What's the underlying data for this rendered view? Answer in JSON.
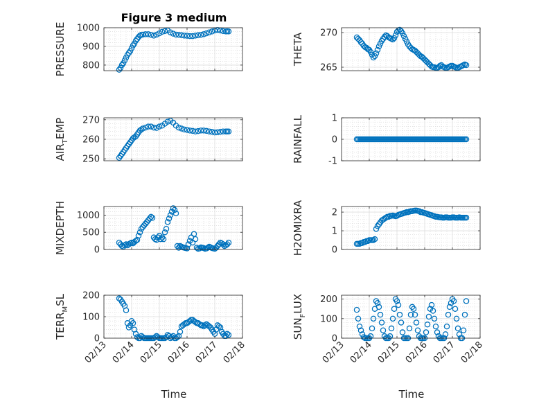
{
  "figure": {
    "title": "Figure 3 medium",
    "xlabel": "Time",
    "marker_color": "#0072bd"
  },
  "chart_data": [
    {
      "type": "scatter",
      "ylabel_parts": [
        "PRESSURE"
      ],
      "ylim": [
        770,
        1000
      ],
      "yticks": [
        800,
        900,
        1000
      ],
      "xticks": [
        "02/13",
        "02/14",
        "02/15",
        "02/16",
        "02/17",
        "02/18"
      ],
      "x": [
        13.55,
        13.6,
        13.65,
        13.7,
        13.75,
        13.8,
        13.85,
        13.9,
        13.95,
        14.0,
        14.05,
        14.1,
        14.15,
        14.2,
        14.25,
        14.3,
        14.35,
        14.4,
        14.5,
        14.6,
        14.7,
        14.8,
        14.9,
        15.0,
        15.1,
        15.2,
        15.3,
        15.4,
        15.5,
        15.6,
        15.7,
        15.8,
        15.9,
        16.0,
        16.1,
        16.2,
        16.3,
        16.4,
        16.5,
        16.6,
        16.7,
        16.8,
        16.9,
        17.0,
        17.1,
        17.2,
        17.3,
        17.4,
        17.45,
        17.5
      ],
      "y": [
        775,
        785,
        800,
        810,
        825,
        840,
        855,
        865,
        875,
        890,
        905,
        915,
        930,
        940,
        950,
        958,
        962,
        963,
        965,
        965,
        962,
        958,
        963,
        970,
        978,
        982,
        985,
        975,
        968,
        963,
        962,
        960,
        958,
        957,
        955,
        955,
        958,
        960,
        962,
        965,
        970,
        975,
        980,
        985,
        988,
        985,
        982,
        980,
        981,
        980
      ]
    },
    {
      "type": "scatter",
      "ylabel_parts": [
        "THETA"
      ],
      "ylim": [
        264.5,
        270.7
      ],
      "yticks": [
        265,
        270
      ],
      "xticks": [
        "02/13",
        "02/14",
        "02/15",
        "02/16",
        "02/17",
        "02/18"
      ],
      "x": [
        13.55,
        13.6,
        13.65,
        13.7,
        13.75,
        13.8,
        13.85,
        13.9,
        13.95,
        14.0,
        14.05,
        14.1,
        14.15,
        14.2,
        14.25,
        14.3,
        14.35,
        14.4,
        14.45,
        14.5,
        14.55,
        14.6,
        14.65,
        14.7,
        14.75,
        14.8,
        14.85,
        14.9,
        14.95,
        15.0,
        15.05,
        15.1,
        15.15,
        15.2,
        15.25,
        15.3,
        15.35,
        15.4,
        15.45,
        15.5,
        15.55,
        15.6,
        15.65,
        15.7,
        15.75,
        15.8,
        15.85,
        15.9,
        15.95,
        16.0,
        16.05,
        16.1,
        16.15,
        16.2,
        16.25,
        16.3,
        16.35,
        16.4,
        16.45,
        16.5,
        16.55,
        16.6,
        16.65,
        16.7,
        16.75,
        16.8,
        16.85,
        16.9,
        16.95,
        17.0,
        17.05,
        17.1,
        17.15,
        17.2,
        17.25,
        17.3,
        17.35,
        17.4,
        17.45,
        17.5
      ],
      "y": [
        269.3,
        269.1,
        268.9,
        268.6,
        268.4,
        268.1,
        267.9,
        267.8,
        267.6,
        267.5,
        267.2,
        266.8,
        266.4,
        266.6,
        267.0,
        267.5,
        268.0,
        268.4,
        268.8,
        269.1,
        269.4,
        269.6,
        269.5,
        269.3,
        269.2,
        269.1,
        269.0,
        269.2,
        269.6,
        270.1,
        270.3,
        270.4,
        270.2,
        269.9,
        269.5,
        269.1,
        268.7,
        268.3,
        268.0,
        267.8,
        267.6,
        267.5,
        267.4,
        267.2,
        267.0,
        266.8,
        266.6,
        266.5,
        266.3,
        266.1,
        265.9,
        265.7,
        265.5,
        265.3,
        265.1,
        265.0,
        265.0,
        264.9,
        264.9,
        265.0,
        265.2,
        265.3,
        265.1,
        265.0,
        264.9,
        264.9,
        265.0,
        265.1,
        265.2,
        265.2,
        265.1,
        265.0,
        264.9,
        264.9,
        265.0,
        265.1,
        265.2,
        265.3,
        265.4,
        265.3
      ]
    },
    {
      "type": "scatter",
      "ylabel_parts": [
        "AIR",
        "T",
        "EMP"
      ],
      "ylim": [
        249,
        271
      ],
      "yticks": [
        250,
        260,
        270
      ],
      "xticks": [
        "02/13",
        "02/14",
        "02/15",
        "02/16",
        "02/17",
        "02/18"
      ],
      "x": [
        13.55,
        13.6,
        13.65,
        13.7,
        13.75,
        13.8,
        13.85,
        13.9,
        13.95,
        14.0,
        14.05,
        14.1,
        14.15,
        14.2,
        14.25,
        14.3,
        14.35,
        14.4,
        14.5,
        14.6,
        14.7,
        14.8,
        14.9,
        15.0,
        15.1,
        15.2,
        15.3,
        15.4,
        15.5,
        15.6,
        15.7,
        15.8,
        15.9,
        16.0,
        16.1,
        16.2,
        16.3,
        16.4,
        16.5,
        16.6,
        16.7,
        16.8,
        16.9,
        17.0,
        17.1,
        17.2,
        17.3,
        17.4,
        17.45,
        17.5
      ],
      "y": [
        250.5,
        251.5,
        252.5,
        253.5,
        254.5,
        255.5,
        256.5,
        257.5,
        258.5,
        259.5,
        260.5,
        261,
        261.5,
        262.5,
        263.5,
        264.5,
        265,
        265.5,
        266,
        266.5,
        266.5,
        266,
        265.8,
        266.5,
        267,
        268,
        269,
        269.5,
        268.5,
        267,
        266,
        265.5,
        265,
        264.8,
        264.5,
        264.3,
        264,
        264.2,
        264.5,
        264.5,
        264.3,
        264,
        263.8,
        263.5,
        263.6,
        263.8,
        264,
        264,
        264,
        264
      ]
    },
    {
      "type": "scatter",
      "ylabel_parts": [
        "RAINFALL"
      ],
      "ylim": [
        -1,
        1
      ],
      "yticks": [
        -1,
        0,
        1
      ],
      "xticks": [
        "02/13",
        "02/14",
        "02/15",
        "02/16",
        "02/17",
        "02/18"
      ],
      "x": [
        13.55,
        13.6,
        13.65,
        13.7,
        13.75,
        13.8,
        13.85,
        13.9,
        13.95,
        14.0,
        14.05,
        14.1,
        14.15,
        14.2,
        14.25,
        14.3,
        14.35,
        14.4,
        14.45,
        14.5,
        14.55,
        14.6,
        14.65,
        14.7,
        14.75,
        14.8,
        14.85,
        14.9,
        14.95,
        15.0,
        15.05,
        15.1,
        15.15,
        15.2,
        15.25,
        15.3,
        15.35,
        15.4,
        15.45,
        15.5,
        15.55,
        15.6,
        15.65,
        15.7,
        15.75,
        15.8,
        15.85,
        15.9,
        15.95,
        16.0,
        16.05,
        16.1,
        16.15,
        16.2,
        16.25,
        16.3,
        16.35,
        16.4,
        16.45,
        16.5,
        16.55,
        16.6,
        16.65,
        16.7,
        16.75,
        16.8,
        16.85,
        16.9,
        16.95,
        17.0,
        17.05,
        17.1,
        17.15,
        17.2,
        17.25,
        17.3,
        17.35,
        17.4,
        17.45,
        17.5
      ],
      "y": [
        0,
        0,
        0,
        0,
        0,
        0,
        0,
        0,
        0,
        0,
        0,
        0,
        0,
        0,
        0,
        0,
        0,
        0,
        0,
        0,
        0,
        0,
        0,
        0,
        0,
        0,
        0,
        0,
        0,
        0,
        0,
        0,
        0,
        0,
        0,
        0,
        0,
        0,
        0,
        0,
        0,
        0,
        0,
        0,
        0,
        0,
        0,
        0,
        0,
        0,
        0,
        0,
        0,
        0,
        0,
        0,
        0,
        0,
        0,
        0,
        0,
        0,
        0,
        0,
        0,
        0,
        0,
        0,
        0,
        0,
        0,
        0,
        0,
        0,
        0,
        0,
        0,
        0,
        0,
        0
      ]
    },
    {
      "type": "scatter",
      "ylabel_parts": [
        "MIXDEPTH"
      ],
      "ylim": [
        0,
        1250
      ],
      "yticks": [
        0,
        500,
        1000
      ],
      "xticks": [
        "02/13",
        "02/14",
        "02/15",
        "02/16",
        "02/17",
        "02/18"
      ],
      "x": [
        13.55,
        13.6,
        13.65,
        13.7,
        13.75,
        13.8,
        13.85,
        13.9,
        13.95,
        14.0,
        14.05,
        14.1,
        14.15,
        14.2,
        14.25,
        14.3,
        14.35,
        14.4,
        14.45,
        14.5,
        14.55,
        14.6,
        14.65,
        14.7,
        14.75,
        14.8,
        14.85,
        14.9,
        14.95,
        15.0,
        15.05,
        15.1,
        15.15,
        15.2,
        15.25,
        15.3,
        15.35,
        15.4,
        15.45,
        15.5,
        15.55,
        15.6,
        15.65,
        15.7,
        15.75,
        15.8,
        15.85,
        15.9,
        15.95,
        16.0,
        16.05,
        16.1,
        16.15,
        16.2,
        16.25,
        16.3,
        16.35,
        16.4,
        16.45,
        16.5,
        16.55,
        16.6,
        16.65,
        16.7,
        16.75,
        16.8,
        16.85,
        16.9,
        16.95,
        17.0,
        17.05,
        17.1,
        17.15,
        17.2,
        17.25,
        17.3,
        17.35,
        17.4,
        17.45,
        17.5
      ],
      "y": [
        200,
        150,
        100,
        80,
        120,
        150,
        120,
        150,
        180,
        200,
        180,
        220,
        250,
        280,
        400,
        500,
        600,
        650,
        700,
        750,
        800,
        850,
        900,
        950,
        920,
        350,
        300,
        280,
        350,
        400,
        300,
        350,
        300,
        500,
        600,
        800,
        900,
        1000,
        1100,
        1200,
        1150,
        1050,
        100,
        50,
        100,
        80,
        60,
        50,
        40,
        30,
        150,
        250,
        350,
        200,
        450,
        300,
        50,
        20,
        30,
        60,
        50,
        40,
        20,
        30,
        50,
        80,
        60,
        40,
        30,
        20,
        50,
        100,
        150,
        200,
        180,
        150,
        100,
        120,
        150,
        200
      ]
    },
    {
      "type": "scatter",
      "ylabel_parts": [
        "H2OMIXRA"
      ],
      "ylim": [
        0,
        2.3
      ],
      "yticks": [
        0,
        1,
        2
      ],
      "xticks": [
        "02/13",
        "02/14",
        "02/15",
        "02/16",
        "02/17",
        "02/18"
      ],
      "x": [
        13.55,
        13.6,
        13.65,
        13.7,
        13.75,
        13.8,
        13.85,
        13.9,
        13.95,
        14.0,
        14.05,
        14.1,
        14.15,
        14.2,
        14.25,
        14.3,
        14.35,
        14.4,
        14.45,
        14.5,
        14.55,
        14.6,
        14.65,
        14.7,
        14.75,
        14.8,
        14.85,
        14.9,
        14.95,
        15.0,
        15.05,
        15.1,
        15.15,
        15.2,
        15.25,
        15.3,
        15.35,
        15.4,
        15.45,
        15.5,
        15.55,
        15.6,
        15.65,
        15.7,
        15.75,
        15.8,
        15.85,
        15.9,
        15.95,
        16.0,
        16.05,
        16.1,
        16.15,
        16.2,
        16.25,
        16.3,
        16.35,
        16.4,
        16.45,
        16.5,
        16.55,
        16.6,
        16.65,
        16.7,
        16.75,
        16.8,
        16.85,
        16.9,
        16.95,
        17.0,
        17.05,
        17.1,
        17.15,
        17.2,
        17.25,
        17.3,
        17.35,
        17.4,
        17.45,
        17.5
      ],
      "y": [
        0.3,
        0.3,
        0.3,
        0.35,
        0.35,
        0.4,
        0.4,
        0.45,
        0.45,
        0.5,
        0.5,
        0.5,
        0.5,
        0.55,
        1.1,
        1.25,
        1.35,
        1.45,
        1.55,
        1.6,
        1.65,
        1.7,
        1.75,
        1.75,
        1.8,
        1.8,
        1.82,
        1.8,
        1.78,
        1.8,
        1.85,
        1.88,
        1.9,
        1.92,
        1.95,
        1.97,
        2.0,
        2.0,
        2.02,
        2.05,
        2.05,
        2.07,
        2.08,
        2.08,
        2.07,
        2.05,
        2.0,
        2.0,
        1.97,
        1.95,
        1.93,
        1.9,
        1.88,
        1.85,
        1.83,
        1.8,
        1.78,
        1.75,
        1.75,
        1.73,
        1.72,
        1.72,
        1.7,
        1.7,
        1.72,
        1.72,
        1.7,
        1.7,
        1.7,
        1.72,
        1.72,
        1.7,
        1.7,
        1.7,
        1.72,
        1.7,
        1.7,
        1.7,
        1.7,
        1.7
      ]
    },
    {
      "type": "scatter",
      "ylabel_parts": [
        "TERR",
        "M",
        "SL"
      ],
      "ylim": [
        0,
        200
      ],
      "yticks": [
        0,
        100,
        200
      ],
      "xticks": [
        "02/13",
        "02/14",
        "02/15",
        "02/16",
        "02/17",
        "02/18"
      ],
      "x": [
        13.55,
        13.6,
        13.65,
        13.7,
        13.75,
        13.8,
        13.85,
        13.9,
        13.95,
        14.0,
        14.05,
        14.1,
        14.15,
        14.2,
        14.25,
        14.3,
        14.35,
        14.4,
        14.45,
        14.5,
        14.55,
        14.6,
        14.65,
        14.7,
        14.75,
        14.8,
        14.85,
        14.9,
        14.95,
        15.0,
        15.05,
        15.1,
        15.15,
        15.2,
        15.25,
        15.3,
        15.35,
        15.4,
        15.45,
        15.5,
        15.55,
        15.6,
        15.65,
        15.7,
        15.75,
        15.8,
        15.85,
        15.9,
        15.95,
        16.0,
        16.05,
        16.1,
        16.15,
        16.2,
        16.25,
        16.3,
        16.35,
        16.4,
        16.45,
        16.5,
        16.55,
        16.6,
        16.65,
        16.7,
        16.75,
        16.8,
        16.85,
        16.9,
        16.95,
        17.0,
        17.05,
        17.1,
        17.15,
        17.2,
        17.25,
        17.3,
        17.35,
        17.4,
        17.45,
        17.5
      ],
      "y": [
        185,
        180,
        170,
        160,
        150,
        130,
        70,
        50,
        60,
        80,
        70,
        40,
        20,
        5,
        0,
        0,
        10,
        5,
        0,
        0,
        0,
        0,
        0,
        0,
        0,
        0,
        5,
        10,
        5,
        0,
        0,
        0,
        0,
        0,
        5,
        15,
        10,
        0,
        5,
        10,
        0,
        0,
        5,
        10,
        30,
        55,
        60,
        65,
        70,
        70,
        75,
        80,
        85,
        85,
        80,
        75,
        70,
        70,
        65,
        60,
        60,
        55,
        60,
        65,
        60,
        55,
        50,
        40,
        30,
        20,
        40,
        60,
        55,
        50,
        30,
        20,
        10,
        10,
        20,
        15
      ]
    },
    {
      "type": "scatter",
      "ylabel_parts": [
        "SUN",
        "F",
        "LUX"
      ],
      "ylim": [
        0,
        220
      ],
      "yticks": [
        0,
        100,
        200
      ],
      "xticks": [
        "02/13",
        "02/14",
        "02/15",
        "02/16",
        "02/17",
        "02/18"
      ],
      "x": [
        13.55,
        13.6,
        13.65,
        13.7,
        13.75,
        13.8,
        13.85,
        13.9,
        13.95,
        14.0,
        14.05,
        14.1,
        14.15,
        14.2,
        14.25,
        14.3,
        14.35,
        14.4,
        14.45,
        14.5,
        14.55,
        14.6,
        14.65,
        14.7,
        14.75,
        14.8,
        14.85,
        14.9,
        14.95,
        15.0,
        15.05,
        15.1,
        15.15,
        15.2,
        15.25,
        15.3,
        15.35,
        15.4,
        15.45,
        15.5,
        15.55,
        15.6,
        15.65,
        15.7,
        15.75,
        15.8,
        15.85,
        15.9,
        15.95,
        16.0,
        16.05,
        16.1,
        16.15,
        16.2,
        16.25,
        16.3,
        16.35,
        16.4,
        16.45,
        16.5,
        16.55,
        16.6,
        16.65,
        16.7,
        16.75,
        16.8,
        16.85,
        16.9,
        16.95,
        17.0,
        17.05,
        17.1,
        17.15,
        17.2,
        17.25,
        17.3,
        17.35,
        17.4,
        17.45,
        17.5
      ],
      "y": [
        145,
        100,
        60,
        40,
        20,
        5,
        0,
        0,
        0,
        0,
        10,
        50,
        100,
        150,
        190,
        180,
        160,
        120,
        80,
        40,
        10,
        0,
        0,
        0,
        10,
        50,
        100,
        150,
        200,
        190,
        170,
        120,
        80,
        30,
        0,
        0,
        0,
        0,
        50,
        120,
        160,
        150,
        120,
        80,
        40,
        10,
        0,
        0,
        0,
        0,
        30,
        70,
        110,
        150,
        170,
        140,
        100,
        60,
        30,
        10,
        0,
        0,
        0,
        0,
        20,
        60,
        120,
        160,
        180,
        200,
        190,
        150,
        100,
        50,
        20,
        0,
        0,
        40,
        120,
        190
      ]
    }
  ]
}
